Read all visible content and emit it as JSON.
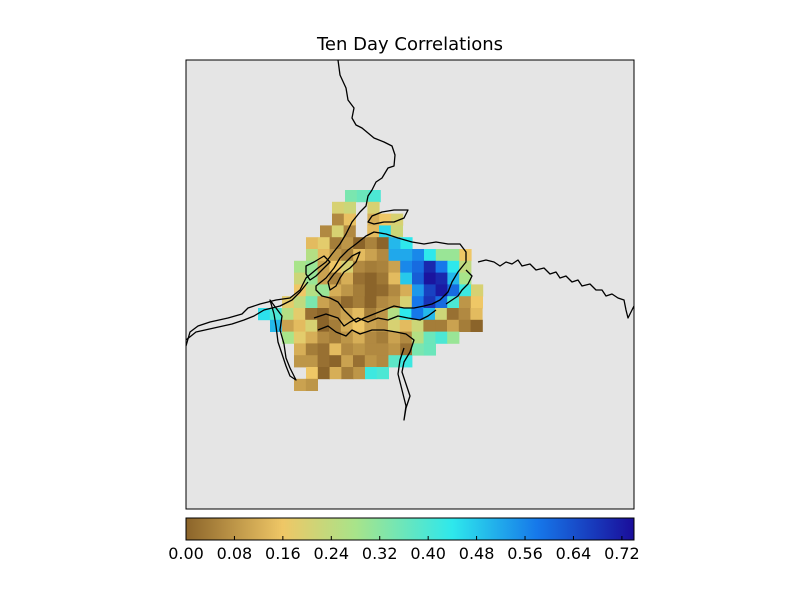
{
  "chart_data": {
    "type": "heatmap",
    "title": "Ten Day Correlations",
    "xlabel": "",
    "ylabel": "",
    "value_range": [
      0.0,
      0.74
    ],
    "colorbar": {
      "ticks": [
        0.0,
        0.08,
        0.16,
        0.24,
        0.32,
        0.4,
        0.48,
        0.56,
        0.64,
        0.72
      ],
      "tick_labels": [
        "0.00",
        "0.08",
        "0.16",
        "0.24",
        "0.32",
        "0.40",
        "0.48",
        "0.56",
        "0.64",
        "0.72"
      ],
      "colors": [
        [
          0.0,
          "#8b642a"
        ],
        [
          0.16,
          "#efc766"
        ],
        [
          0.28,
          "#a8e48a"
        ],
        [
          0.44,
          "#2ee8ec"
        ],
        [
          0.58,
          "#1678ea"
        ],
        [
          0.74,
          "#1a0d9a"
        ]
      ]
    },
    "background_color": "#e5e5e5",
    "grid": false,
    "rows": [
      {
        "values": [
          0.34,
          0.36,
          0.4
        ]
      },
      {
        "values": [
          0.2,
          0.22,
          null,
          0.2
        ]
      },
      {
        "values": [
          0.06,
          0.15,
          null,
          0.12,
          0.16,
          0.2
        ]
      },
      {
        "values": [
          0.06,
          0.2,
          0.06,
          null,
          0.14,
          0.46,
          0.22
        ]
      },
      {
        "values": [
          0.14,
          0.18,
          0.04,
          0.08,
          0.0,
          0.05,
          0.0,
          0.5,
          0.44
        ]
      },
      {
        "values": [
          0.26,
          0.14,
          0.08,
          0.05,
          0.14,
          0.1,
          0.06,
          0.52,
          0.52,
          0.56,
          0.44,
          0.3,
          0.3,
          0.16
        ]
      },
      {
        "values": [
          0.28,
          0.3,
          0.1,
          0.16,
          0.2,
          0.06,
          0.04,
          0.05,
          0.1,
          0.56,
          0.6,
          0.7,
          0.58,
          0.44,
          0.24
        ]
      },
      {
        "values": [
          0.22,
          0.3,
          0.1,
          0.05,
          0.12,
          0.02,
          0.0,
          0.03,
          0.14,
          0.48,
          0.62,
          0.73,
          0.7,
          0.5,
          0.28
        ]
      },
      {
        "values": [
          0.16,
          0.26,
          0.3,
          0.12,
          0.08,
          0.04,
          0.0,
          0.01,
          0.06,
          0.12,
          0.54,
          0.66,
          0.72,
          0.6,
          0.42,
          0.2
        ]
      },
      {
        "values": [
          0.18,
          0.24,
          0.34,
          0.1,
          0.06,
          0.01,
          0.04,
          0.0,
          0.06,
          0.08,
          0.2,
          0.58,
          0.68,
          0.6,
          0.4,
          0.08,
          0.16
        ]
      },
      {
        "values": [
          0.45,
          0.4,
          0.26,
          0.18,
          0.02,
          0.0,
          0.06,
          0.1,
          0.14,
          0.04,
          0.08,
          0.26,
          0.44,
          0.58,
          0.5,
          0.22,
          0.02,
          0.06,
          0.14
        ]
      },
      {
        "values": [
          0.5,
          0.1,
          0.14,
          0.2,
          0.0,
          0.04,
          0.12,
          0.16,
          0.1,
          0.08,
          0.2,
          0.14,
          0.22,
          0.04,
          0.04,
          0.1,
          0.04,
          0.0
        ]
      },
      {
        "values": [
          0.28,
          0.18,
          0.12,
          0.06,
          0.04,
          0.08,
          0.12,
          0.06,
          0.04,
          0.1,
          0.06,
          0.26,
          0.36,
          0.4,
          0.3
        ]
      },
      {
        "values": [
          0.12,
          0.04,
          0.02,
          0.14,
          0.06,
          0.08,
          0.06,
          0.06,
          0.08,
          0.02,
          0.34,
          0.36
        ]
      },
      {
        "values": [
          0.08,
          0.08,
          0.02,
          0.0,
          0.1,
          0.02,
          0.08,
          0.06,
          0.38,
          0.42
        ]
      },
      {
        "values": [
          0.16,
          0.0,
          0.12,
          0.04,
          0.08,
          0.42,
          0.4
        ]
      },
      {
        "values": [
          0.1,
          0.08
        ]
      }
    ]
  }
}
